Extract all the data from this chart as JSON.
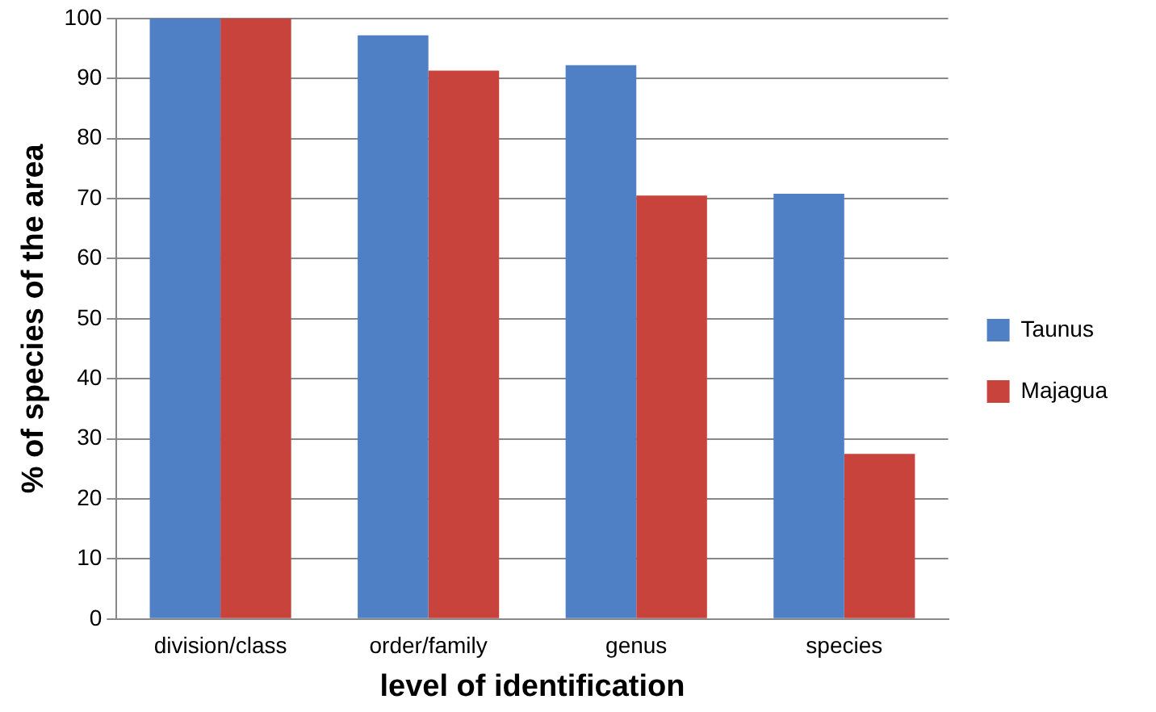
{
  "chart_data": {
    "type": "bar",
    "xlabel": "level of identification",
    "ylabel": "% of species of the area",
    "categories": [
      "division/class",
      "order/family",
      "genus",
      "species"
    ],
    "series": [
      {
        "name": "Taunus",
        "color": "#4f7fc4",
        "values": [
          100,
          97.2,
          92.2,
          70.8
        ]
      },
      {
        "name": "Majagua",
        "color": "#c9433d",
        "values": [
          100,
          91.3,
          70.5,
          27.5
        ]
      }
    ],
    "ylim": [
      0,
      100
    ],
    "yticks": [
      0,
      10,
      20,
      30,
      40,
      50,
      60,
      70,
      80,
      90,
      100
    ],
    "grid": "y",
    "legend": "right"
  }
}
